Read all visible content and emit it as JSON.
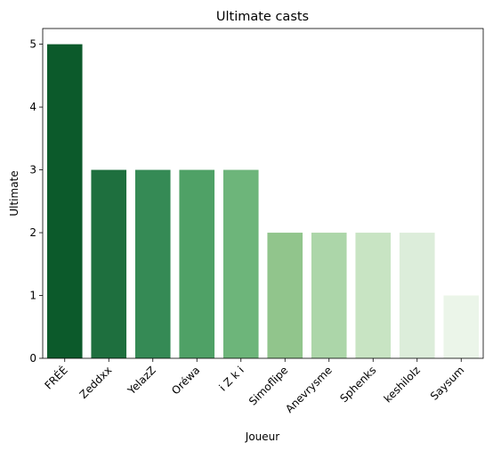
{
  "chart_data": {
    "type": "bar",
    "title": "Ultimate casts",
    "xlabel": "Joueur",
    "ylabel": "Ultimate",
    "categories": [
      "FRÉÉ",
      "Zeddxx",
      "YelazZ",
      "Oréwa",
      "i  Z  k  i",
      "Simoflipe",
      "Anevrysme",
      "Sphenks",
      "keshilolz",
      "Saysum"
    ],
    "values": [
      5,
      3,
      3,
      3,
      3,
      2,
      2,
      2,
      2,
      1
    ],
    "colors": [
      "#0c5a2b",
      "#1e6f3e",
      "#358a55",
      "#4fa166",
      "#6db57a",
      "#91c58c",
      "#acd6a9",
      "#c8e4c3",
      "#dcedda",
      "#ebf5e9"
    ],
    "ylim": [
      0,
      5.25
    ],
    "yticks": [
      "0",
      "1",
      "2",
      "3",
      "4",
      "5"
    ],
    "grid": false,
    "legend": "none"
  }
}
